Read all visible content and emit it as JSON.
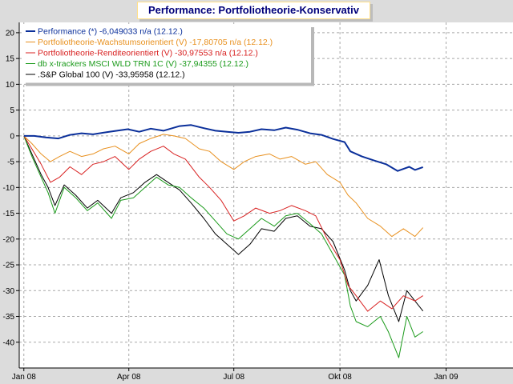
{
  "chart_data": {
    "type": "line",
    "title": "Performance: Portfoliotheorie-Konservativ",
    "xlabel": "",
    "ylabel": "",
    "x_range": [
      "2007-12-28",
      "2009-02-28"
    ],
    "ylim": [
      -45,
      22
    ],
    "x_ticks": [
      {
        "date": "2008-01-01",
        "label": "Jan 08"
      },
      {
        "date": "2008-04-01",
        "label": "Apr 08"
      },
      {
        "date": "2008-07-01",
        "label": "Jul 08"
      },
      {
        "date": "2008-10-01",
        "label": "Okt 08"
      },
      {
        "date": "2009-01-01",
        "label": "Jan 09"
      }
    ],
    "y_ticks": [
      20,
      15,
      10,
      5,
      0,
      -5,
      -10,
      -15,
      -20,
      -25,
      -30,
      -35,
      -40
    ],
    "grid": true,
    "legend_position": "top-left",
    "series": [
      {
        "name": "Performance (*) -6,049033 n/a (12.12.)",
        "color": "#0a2f9a",
        "x": [
          "2008-01-01",
          "2008-01-10",
          "2008-01-20",
          "2008-01-31",
          "2008-02-10",
          "2008-02-20",
          "2008-03-01",
          "2008-03-15",
          "2008-03-31",
          "2008-04-10",
          "2008-04-20",
          "2008-05-01",
          "2008-05-15",
          "2008-05-25",
          "2008-06-05",
          "2008-06-15",
          "2008-06-25",
          "2008-07-05",
          "2008-07-15",
          "2008-07-25",
          "2008-08-05",
          "2008-08-15",
          "2008-08-25",
          "2008-09-05",
          "2008-09-15",
          "2008-09-25",
          "2008-10-05",
          "2008-10-10",
          "2008-10-20",
          "2008-10-31",
          "2008-11-10",
          "2008-11-20",
          "2008-11-30",
          "2008-12-05",
          "2008-12-12"
        ],
        "values": [
          0,
          0,
          -0.3,
          -0.5,
          0.2,
          0.5,
          0.3,
          0.8,
          1.3,
          0.8,
          1.4,
          1.0,
          1.9,
          2.1,
          1.5,
          1.0,
          0.8,
          0.6,
          0.8,
          1.3,
          1.1,
          1.6,
          1.2,
          0.5,
          0.2,
          -0.6,
          -1.2,
          -3.0,
          -4.0,
          -4.8,
          -5.5,
          -6.8,
          -6.0,
          -6.6,
          -6.05
        ]
      },
      {
        "name": "Portfoliotheorie-Wachstumsorientiert (V) -17,80705 n/a (12.12.)",
        "color": "#e8901e",
        "x": [
          "2008-01-01",
          "2008-01-08",
          "2008-01-16",
          "2008-01-24",
          "2008-02-01",
          "2008-02-10",
          "2008-02-20",
          "2008-03-01",
          "2008-03-10",
          "2008-03-20",
          "2008-04-01",
          "2008-04-10",
          "2008-04-20",
          "2008-05-01",
          "2008-05-10",
          "2008-05-20",
          "2008-06-01",
          "2008-06-10",
          "2008-06-20",
          "2008-07-01",
          "2008-07-10",
          "2008-07-20",
          "2008-08-01",
          "2008-08-10",
          "2008-08-20",
          "2008-09-01",
          "2008-09-10",
          "2008-09-20",
          "2008-10-01",
          "2008-10-08",
          "2008-10-15",
          "2008-10-25",
          "2008-11-05",
          "2008-11-15",
          "2008-11-25",
          "2008-12-05",
          "2008-12-12"
        ],
        "values": [
          0,
          -1.5,
          -3.5,
          -5.0,
          -4.0,
          -3.0,
          -4.0,
          -3.5,
          -2.5,
          -2.0,
          -3.5,
          -1.5,
          -0.5,
          0.3,
          0.0,
          -0.5,
          -2.5,
          -3.0,
          -5.0,
          -6.5,
          -5.0,
          -4.0,
          -3.5,
          -4.5,
          -4.0,
          -5.5,
          -5.0,
          -7.5,
          -9.0,
          -11.5,
          -13.0,
          -16.0,
          -17.5,
          -19.5,
          -18.0,
          -19.5,
          -17.8
        ]
      },
      {
        "name": "Portfoliotheorie-Renditeorientiert (V) -30,97553 n/a (12.12.)",
        "color": "#d82020",
        "x": [
          "2008-01-01",
          "2008-01-08",
          "2008-01-16",
          "2008-01-24",
          "2008-02-01",
          "2008-02-10",
          "2008-02-20",
          "2008-03-01",
          "2008-03-10",
          "2008-03-20",
          "2008-04-01",
          "2008-04-10",
          "2008-04-20",
          "2008-05-01",
          "2008-05-10",
          "2008-05-20",
          "2008-06-01",
          "2008-06-10",
          "2008-06-20",
          "2008-07-01",
          "2008-07-10",
          "2008-07-20",
          "2008-08-01",
          "2008-08-10",
          "2008-08-20",
          "2008-09-01",
          "2008-09-10",
          "2008-09-20",
          "2008-10-01",
          "2008-10-08",
          "2008-10-15",
          "2008-10-25",
          "2008-11-05",
          "2008-11-15",
          "2008-11-25",
          "2008-12-05",
          "2008-12-12"
        ],
        "values": [
          0,
          -2.5,
          -5.5,
          -9.0,
          -8.0,
          -6.0,
          -7.5,
          -5.5,
          -5.0,
          -4.0,
          -6.5,
          -4.5,
          -3.0,
          -2.0,
          -3.5,
          -4.5,
          -8.0,
          -10.0,
          -12.5,
          -16.5,
          -15.5,
          -14.0,
          -15.0,
          -14.5,
          -13.5,
          -14.5,
          -15.5,
          -20.0,
          -24.0,
          -29.0,
          -31.0,
          -34.0,
          -32.0,
          -33.5,
          -31.0,
          -32.0,
          -30.98
        ]
      },
      {
        "name": "db x-trackers MSCI WLD TRN 1C (V) -37,94355 (12.12.)",
        "color": "#1a9a1a",
        "x": [
          "2008-01-01",
          "2008-01-08",
          "2008-01-16",
          "2008-01-22",
          "2008-01-28",
          "2008-02-05",
          "2008-02-15",
          "2008-02-25",
          "2008-03-05",
          "2008-03-17",
          "2008-03-25",
          "2008-04-05",
          "2008-04-15",
          "2008-04-25",
          "2008-05-05",
          "2008-05-15",
          "2008-05-25",
          "2008-06-05",
          "2008-06-15",
          "2008-06-25",
          "2008-07-05",
          "2008-07-15",
          "2008-07-25",
          "2008-08-05",
          "2008-08-15",
          "2008-08-25",
          "2008-09-05",
          "2008-09-15",
          "2008-09-25",
          "2008-10-05",
          "2008-10-10",
          "2008-10-15",
          "2008-10-25",
          "2008-11-05",
          "2008-11-12",
          "2008-11-21",
          "2008-11-28",
          "2008-12-05",
          "2008-12-12"
        ],
        "values": [
          0,
          -4.0,
          -8.0,
          -11.0,
          -15.0,
          -10.0,
          -12.0,
          -14.5,
          -13.0,
          -16.0,
          -12.5,
          -12.0,
          -10.0,
          -8.0,
          -9.5,
          -10.0,
          -12.0,
          -14.0,
          -16.5,
          -19.0,
          -20.0,
          -18.0,
          -16.0,
          -17.5,
          -15.5,
          -15.0,
          -17.0,
          -19.0,
          -23.0,
          -27.0,
          -33.0,
          -36.0,
          -37.0,
          -35.0,
          -38.0,
          -43.0,
          -35.0,
          -39.0,
          -37.94
        ]
      },
      {
        "name": ".S&P Global 100 (V) -33,95958 (12.12.)",
        "color": "#000000",
        "x": [
          "2008-01-01",
          "2008-01-08",
          "2008-01-16",
          "2008-01-22",
          "2008-01-28",
          "2008-02-05",
          "2008-02-15",
          "2008-02-25",
          "2008-03-05",
          "2008-03-17",
          "2008-03-25",
          "2008-04-05",
          "2008-04-15",
          "2008-04-25",
          "2008-05-05",
          "2008-05-15",
          "2008-05-25",
          "2008-06-05",
          "2008-06-15",
          "2008-06-25",
          "2008-07-05",
          "2008-07-15",
          "2008-07-25",
          "2008-08-05",
          "2008-08-15",
          "2008-08-25",
          "2008-09-05",
          "2008-09-15",
          "2008-09-25",
          "2008-10-05",
          "2008-10-10",
          "2008-10-15",
          "2008-10-25",
          "2008-11-04",
          "2008-11-12",
          "2008-11-21",
          "2008-11-28",
          "2008-12-05",
          "2008-12-12"
        ],
        "values": [
          0,
          -3.5,
          -7.5,
          -10.0,
          -13.5,
          -9.5,
          -11.5,
          -14.0,
          -12.5,
          -15.0,
          -12.0,
          -11.0,
          -9.0,
          -7.5,
          -9.0,
          -10.5,
          -13.0,
          -16.0,
          -19.0,
          -21.0,
          -23.0,
          -21.0,
          -18.0,
          -18.5,
          -16.0,
          -15.5,
          -17.5,
          -18.0,
          -20.5,
          -26.0,
          -30.0,
          -32.0,
          -29.0,
          -24.0,
          -31.0,
          -36.0,
          -30.0,
          -32.0,
          -33.96
        ]
      }
    ]
  }
}
